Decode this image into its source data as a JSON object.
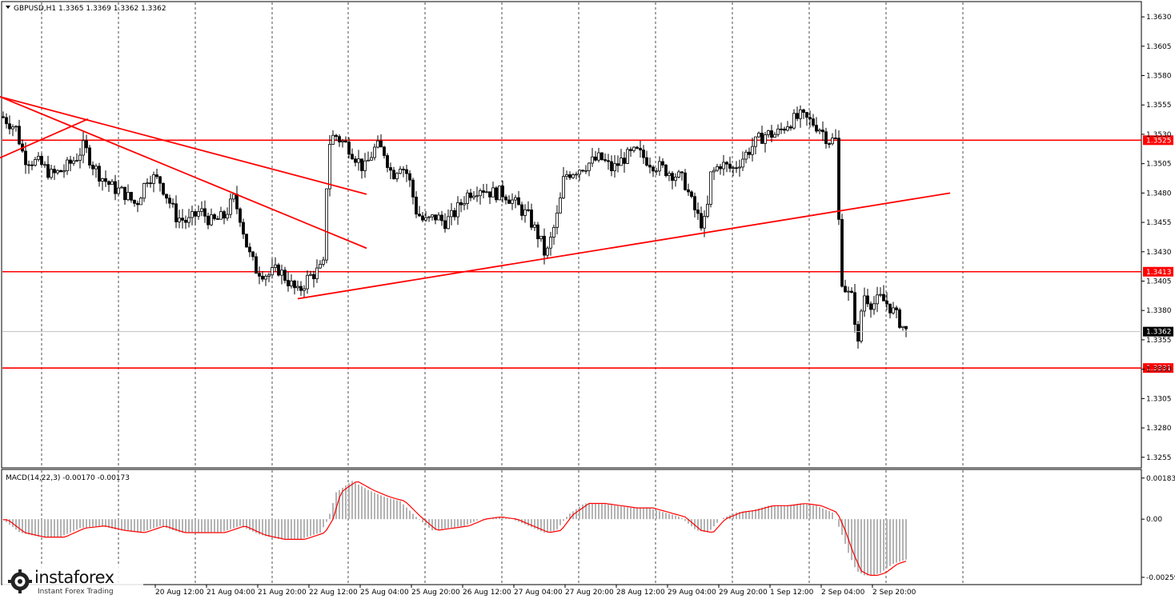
{
  "header": {
    "title": "GBPUSD,H1  1.3365 1.3369 1.3362 1.3362"
  },
  "indicator": {
    "label": "MACD(14,22,3) -0.00170 -0.00173",
    "ticks": [
      {
        "v": 0.00183,
        "label": "0.00183"
      },
      {
        "v": 0.0,
        "label": "0.00"
      },
      {
        "v": -0.00259,
        "label": "-0.00259"
      }
    ]
  },
  "branding": {
    "name": "instaforex",
    "tagline": "Instant Forex Trading"
  },
  "chart_data": {
    "type": "candlestick",
    "symbol": "GBPUSD",
    "timeframe": "H1",
    "last_price": 1.3362,
    "last_price_label": "1.3362",
    "ylim": [
      1.3246,
      1.3643
    ],
    "y_ticks": [
      {
        "v": 1.363,
        "label": "1.3630"
      },
      {
        "v": 1.3605,
        "label": "1.3605"
      },
      {
        "v": 1.358,
        "label": "1.3580"
      },
      {
        "v": 1.3555,
        "label": "1.3555"
      },
      {
        "v": 1.353,
        "label": "1.3530"
      },
      {
        "v": 1.3505,
        "label": "1.3505"
      },
      {
        "v": 1.348,
        "label": "1.3480"
      },
      {
        "v": 1.3455,
        "label": "1.3455"
      },
      {
        "v": 1.343,
        "label": "1.3430"
      },
      {
        "v": 1.3405,
        "label": "1.3405"
      },
      {
        "v": 1.338,
        "label": "1.3380"
      },
      {
        "v": 1.3355,
        "label": "1.3355"
      },
      {
        "v": 1.333,
        "label": "1.3330"
      },
      {
        "v": 1.3305,
        "label": "1.3305"
      },
      {
        "v": 1.328,
        "label": "1.3280"
      },
      {
        "v": 1.3255,
        "label": "1.3255"
      }
    ],
    "x_labels": [
      "20 Aug 12:00",
      "21 Aug 04:00",
      "21 Aug 20:00",
      "22 Aug 12:00",
      "25 Aug 04:00",
      "25 Aug 20:00",
      "26 Aug 12:00",
      "27 Aug 04:00",
      "27 Aug 20:00",
      "28 Aug 12:00",
      "29 Aug 04:00",
      "29 Aug 20:00",
      "1 Sep 12:00",
      "2 Sep 04:00",
      "2 Sep 20:00"
    ],
    "levels": [
      {
        "price": 1.3525,
        "label": "1.3525",
        "color": "#ff0000"
      },
      {
        "price": 1.3413,
        "label": "1.3413",
        "color": "#ff0000"
      },
      {
        "price": 1.3331,
        "label": "1.3331",
        "color": "#ff0000"
      }
    ],
    "trendlines": [
      {
        "from": [
          0,
          1.3562
        ],
        "to": [
          458,
          1.3479
        ]
      },
      {
        "from": [
          0,
          1.3562
        ],
        "to": [
          458,
          1.3433
        ]
      },
      {
        "from": [
          0,
          1.351
        ],
        "to": [
          110,
          1.3543
        ]
      },
      {
        "from": [
          372,
          1.339
        ],
        "to": [
          1187,
          1.348
        ]
      }
    ],
    "price_path": [
      [
        3,
        1.3545
      ],
      [
        20,
        1.3535
      ],
      [
        30,
        1.351
      ],
      [
        50,
        1.3505
      ],
      [
        65,
        1.3495
      ],
      [
        80,
        1.35
      ],
      [
        95,
        1.351
      ],
      [
        105,
        1.352
      ],
      [
        115,
        1.3505
      ],
      [
        125,
        1.3495
      ],
      [
        140,
        1.3485
      ],
      [
        155,
        1.348
      ],
      [
        170,
        1.347
      ],
      [
        185,
        1.3495
      ],
      [
        200,
        1.349
      ],
      [
        210,
        1.3475
      ],
      [
        220,
        1.346
      ],
      [
        235,
        1.3455
      ],
      [
        250,
        1.3465
      ],
      [
        265,
        1.3455
      ],
      [
        280,
        1.346
      ],
      [
        292,
        1.3475
      ],
      [
        300,
        1.346
      ],
      [
        310,
        1.343
      ],
      [
        320,
        1.3415
      ],
      [
        335,
        1.341
      ],
      [
        348,
        1.3415
      ],
      [
        360,
        1.3405
      ],
      [
        372,
        1.3395
      ],
      [
        385,
        1.3408
      ],
      [
        400,
        1.3415
      ],
      [
        406,
        1.342
      ],
      [
        409,
        1.352
      ],
      [
        418,
        1.353
      ],
      [
        425,
        1.3525
      ],
      [
        435,
        1.352
      ],
      [
        445,
        1.351
      ],
      [
        455,
        1.35
      ],
      [
        462,
        1.351
      ],
      [
        470,
        1.352
      ],
      [
        480,
        1.3515
      ],
      [
        490,
        1.3495
      ],
      [
        500,
        1.3505
      ],
      [
        510,
        1.3495
      ],
      [
        520,
        1.3465
      ],
      [
        530,
        1.3455
      ],
      [
        545,
        1.346
      ],
      [
        555,
        1.3455
      ],
      [
        565,
        1.346
      ],
      [
        575,
        1.347
      ],
      [
        585,
        1.348
      ],
      [
        600,
        1.3485
      ],
      [
        615,
        1.348
      ],
      [
        630,
        1.348
      ],
      [
        645,
        1.347
      ],
      [
        660,
        1.346
      ],
      [
        675,
        1.344
      ],
      [
        682,
        1.3425
      ],
      [
        690,
        1.3445
      ],
      [
        698,
        1.3465
      ],
      [
        705,
        1.3495
      ],
      [
        720,
        1.35
      ],
      [
        735,
        1.3505
      ],
      [
        750,
        1.351
      ],
      [
        765,
        1.35
      ],
      [
        780,
        1.351
      ],
      [
        795,
        1.3515
      ],
      [
        805,
        1.351
      ],
      [
        815,
        1.3505
      ],
      [
        830,
        1.35
      ],
      [
        845,
        1.3495
      ],
      [
        855,
        1.349
      ],
      [
        865,
        1.347
      ],
      [
        875,
        1.3455
      ],
      [
        882,
        1.3455
      ],
      [
        888,
        1.3495
      ],
      [
        900,
        1.3505
      ],
      [
        915,
        1.35
      ],
      [
        928,
        1.351
      ],
      [
        940,
        1.352
      ],
      [
        955,
        1.353
      ],
      [
        970,
        1.353
      ],
      [
        985,
        1.354
      ],
      [
        1000,
        1.3545
      ],
      [
        1015,
        1.354
      ],
      [
        1025,
        1.3535
      ],
      [
        1035,
        1.3525
      ],
      [
        1045,
        1.3525
      ],
      [
        1050,
        1.341
      ],
      [
        1058,
        1.3395
      ],
      [
        1065,
        1.339
      ],
      [
        1072,
        1.335
      ],
      [
        1078,
        1.3395
      ],
      [
        1090,
        1.3385
      ],
      [
        1100,
        1.339
      ],
      [
        1110,
        1.3385
      ],
      [
        1120,
        1.3375
      ],
      [
        1132,
        1.3362
      ]
    ],
    "macd_path": [
      [
        3,
        0.0
      ],
      [
        25,
        -0.0006
      ],
      [
        50,
        -0.0008
      ],
      [
        75,
        -0.0008
      ],
      [
        100,
        -0.0004
      ],
      [
        125,
        -0.0003
      ],
      [
        150,
        -0.0005
      ],
      [
        175,
        -0.0006
      ],
      [
        200,
        -0.0003
      ],
      [
        225,
        -0.0006
      ],
      [
        250,
        -0.0006
      ],
      [
        275,
        -0.0006
      ],
      [
        300,
        -0.0003
      ],
      [
        325,
        -0.0007
      ],
      [
        350,
        -0.0009
      ],
      [
        375,
        -0.0009
      ],
      [
        400,
        -0.0006
      ],
      [
        410,
        0.0
      ],
      [
        420,
        0.0012
      ],
      [
        440,
        0.0017
      ],
      [
        460,
        0.0013
      ],
      [
        480,
        0.001
      ],
      [
        500,
        0.0008
      ],
      [
        520,
        0.0001
      ],
      [
        540,
        -0.0005
      ],
      [
        560,
        -0.0004
      ],
      [
        580,
        -0.0003
      ],
      [
        600,
        0.0
      ],
      [
        620,
        0.0001
      ],
      [
        640,
        0.0
      ],
      [
        660,
        -0.0003
      ],
      [
        680,
        -0.0006
      ],
      [
        695,
        -0.0005
      ],
      [
        710,
        0.0002
      ],
      [
        730,
        0.0007
      ],
      [
        750,
        0.0007
      ],
      [
        770,
        0.0006
      ],
      [
        790,
        0.0005
      ],
      [
        810,
        0.0005
      ],
      [
        830,
        0.0003
      ],
      [
        850,
        0.0001
      ],
      [
        870,
        -0.0005
      ],
      [
        885,
        -0.0006
      ],
      [
        900,
        0.0
      ],
      [
        920,
        0.0003
      ],
      [
        940,
        0.0004
      ],
      [
        960,
        0.0006
      ],
      [
        980,
        0.0006
      ],
      [
        1000,
        0.0007
      ],
      [
        1020,
        0.0006
      ],
      [
        1040,
        0.0003
      ],
      [
        1050,
        -0.0005
      ],
      [
        1060,
        -0.0015
      ],
      [
        1070,
        -0.0023
      ],
      [
        1080,
        -0.0025
      ],
      [
        1090,
        -0.0025
      ],
      [
        1100,
        -0.0024
      ],
      [
        1115,
        -0.002
      ],
      [
        1132,
        -0.0018
      ]
    ]
  }
}
